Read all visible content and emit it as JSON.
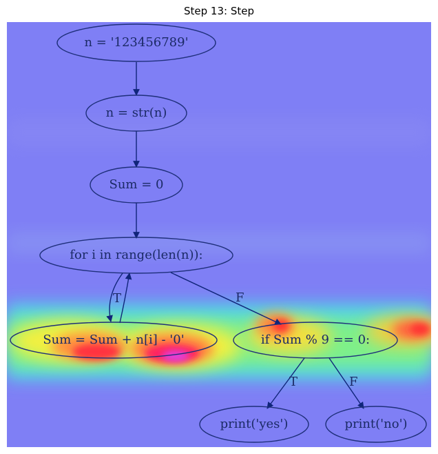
{
  "title": "Step 13: Step",
  "colors": {
    "heat_low": "#7f7ff5",
    "heat_high": "#ff2020",
    "node_stroke": "#1e2f7a",
    "edge_stroke": "#10257a",
    "text": "#1b2a66"
  },
  "nodes": [
    {
      "id": "n1",
      "label": "n = '123456789'"
    },
    {
      "id": "n2",
      "label": "n = str(n)"
    },
    {
      "id": "n3",
      "label": "Sum = 0"
    },
    {
      "id": "n4",
      "label": "for i in range(len(n)):"
    },
    {
      "id": "n5",
      "label": "Sum = Sum + n[i] - '0'"
    },
    {
      "id": "n6",
      "label": "if Sum % 9 == 0:"
    },
    {
      "id": "n7",
      "label": "print('yes')"
    },
    {
      "id": "n8",
      "label": "print('no')"
    }
  ],
  "edges": [
    {
      "from": "n1",
      "to": "n2",
      "label": ""
    },
    {
      "from": "n2",
      "to": "n3",
      "label": ""
    },
    {
      "from": "n3",
      "to": "n4",
      "label": ""
    },
    {
      "from": "n4",
      "to": "n5",
      "label": "T"
    },
    {
      "from": "n5",
      "to": "n4",
      "label": ""
    },
    {
      "from": "n4",
      "to": "n6",
      "label": "F"
    },
    {
      "from": "n6",
      "to": "n7",
      "label": "T"
    },
    {
      "from": "n6",
      "to": "n8",
      "label": "F"
    }
  ]
}
